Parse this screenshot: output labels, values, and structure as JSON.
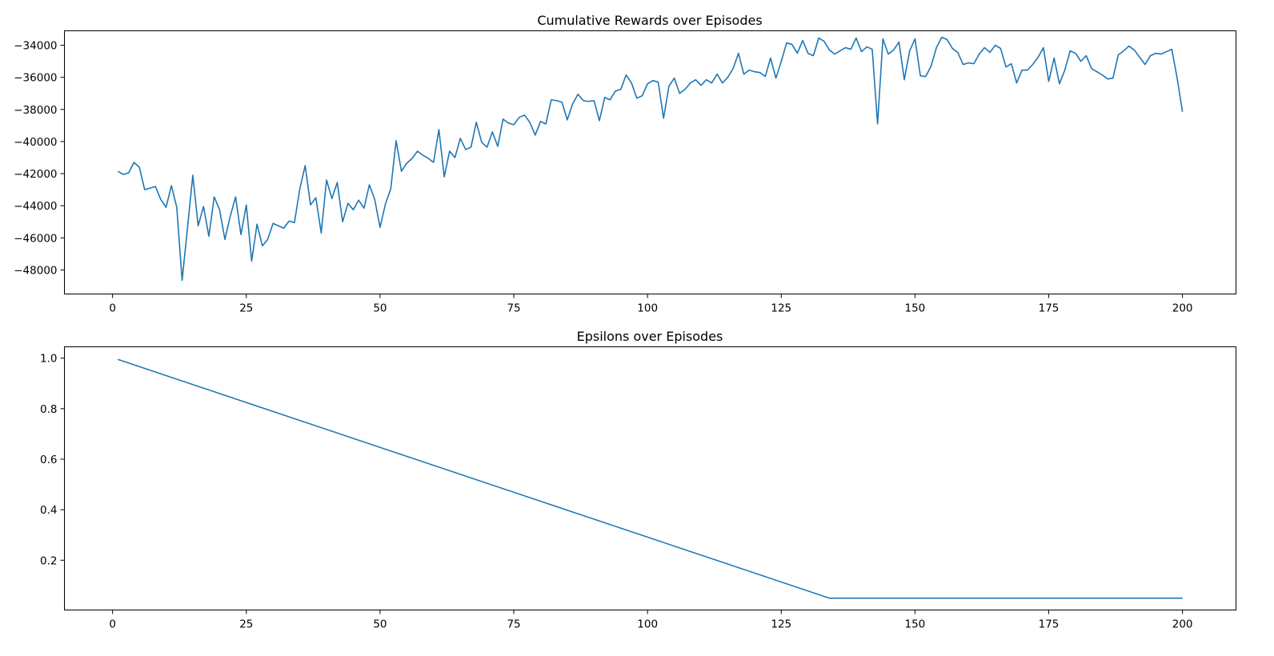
{
  "colors": {
    "series": "#1f77b4",
    "axis": "#000000",
    "background": "#ffffff"
  },
  "chart_data": [
    {
      "type": "line",
      "title": "Cumulative Rewards over Episodes",
      "xlabel": "",
      "ylabel": "",
      "xlim": [
        -9,
        210
      ],
      "ylim": [
        -49500,
        -33100
      ],
      "xticks": [
        0,
        25,
        50,
        75,
        100,
        125,
        150,
        175,
        200
      ],
      "xtick_labels": [
        "0",
        "25",
        "50",
        "75",
        "100",
        "125",
        "150",
        "175",
        "200"
      ],
      "yticks": [
        -48000,
        -46000,
        -44000,
        -42000,
        -40000,
        -38000,
        -36000,
        -34000
      ],
      "ytick_labels": [
        "−48000",
        "−46000",
        "−44000",
        "−42000",
        "−40000",
        "−38000",
        "−36000",
        "−34000"
      ],
      "grid": false,
      "legend": "none",
      "x_start": 1,
      "series": [
        {
          "values": [
            -41850,
            -42050,
            -41950,
            -41300,
            -41600,
            -43000,
            -42900,
            -42800,
            -43600,
            -44100,
            -42750,
            -44100,
            -48650,
            -45400,
            -42100,
            -45250,
            -44050,
            -45900,
            -43450,
            -44250,
            -46100,
            -44650,
            -43450,
            -45800,
            -43950,
            -47450,
            -45150,
            -46500,
            -46100,
            -45100,
            -45250,
            -45400,
            -44950,
            -45050,
            -42950,
            -41500,
            -43950,
            -43500,
            -45700,
            -42400,
            -43550,
            -42550,
            -45000,
            -43850,
            -44250,
            -43650,
            -44150,
            -42700,
            -43600,
            -45350,
            -43900,
            -42950,
            -39950,
            -41850,
            -41350,
            -41050,
            -40600,
            -40850,
            -41050,
            -41300,
            -39250,
            -42200,
            -40600,
            -41000,
            -39800,
            -40500,
            -40350,
            -38800,
            -40050,
            -40350,
            -39400,
            -40300,
            -38600,
            -38850,
            -38950,
            -38500,
            -38350,
            -38800,
            -39600,
            -38750,
            -38900,
            -37400,
            -37450,
            -37550,
            -38650,
            -37650,
            -37050,
            -37450,
            -37500,
            -37450,
            -38700,
            -37250,
            -37400,
            -36850,
            -36750,
            -35850,
            -36350,
            -37300,
            -37150,
            -36400,
            -36200,
            -36300,
            -38550,
            -36550,
            -36050,
            -37000,
            -36750,
            -36350,
            -36150,
            -36500,
            -36150,
            -36350,
            -35800,
            -36350,
            -36000,
            -35450,
            -34500,
            -35800,
            -35550,
            -35650,
            -35700,
            -35950,
            -34800,
            -36050,
            -35000,
            -33850,
            -33950,
            -34500,
            -33700,
            -34500,
            -34650,
            -33550,
            -33750,
            -34300,
            -34550,
            -34350,
            -34150,
            -34250,
            -33550,
            -34400,
            -34100,
            -34250,
            -38900,
            -33600,
            -34550,
            -34300,
            -33800,
            -36150,
            -34350,
            -33600,
            -35900,
            -35950,
            -35300,
            -34150,
            -33500,
            -33650,
            -34200,
            -34450,
            -35200,
            -35100,
            -35150,
            -34550,
            -34150,
            -34450,
            -34000,
            -34200,
            -35350,
            -35150,
            -36350,
            -35550,
            -35550,
            -35200,
            -34750,
            -34150,
            -36250,
            -34800,
            -36400,
            -35550,
            -34350,
            -34500,
            -35000,
            -34650,
            -35450,
            -35650,
            -35850,
            -36100,
            -36050,
            -34600,
            -34350,
            -34050,
            -34300,
            -34750,
            -35200,
            -34650,
            -34500,
            -34550,
            -34400,
            -34250,
            -36050,
            -38150
          ]
        }
      ]
    },
    {
      "type": "line",
      "title": "Epsilons over Episodes",
      "xlabel": "",
      "ylabel": "",
      "xlim": [
        -9,
        210
      ],
      "ylim": [
        0.003,
        1.045
      ],
      "xticks": [
        0,
        25,
        50,
        75,
        100,
        125,
        150,
        175,
        200
      ],
      "xtick_labels": [
        "0",
        "25",
        "50",
        "75",
        "100",
        "125",
        "150",
        "175",
        "200"
      ],
      "yticks": [
        0.2,
        0.4,
        0.6,
        0.8,
        1.0
      ],
      "ytick_labels": [
        "0.2",
        "0.4",
        "0.6",
        "0.8",
        "1.0"
      ],
      "grid": false,
      "legend": "none",
      "series": [
        {
          "description_rule": "linear decay",
          "points": [
            [
              1,
              0.995
            ],
            [
              133,
              0.057
            ],
            [
              134,
              0.05
            ],
            [
              200,
              0.05
            ]
          ]
        }
      ]
    }
  ]
}
